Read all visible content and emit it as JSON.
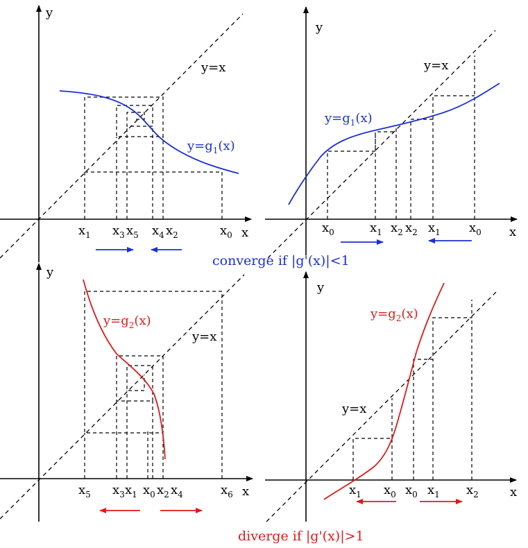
{
  "colors": {
    "axis": "#000000",
    "converge": "#1a2fd6",
    "diverge": "#e11a1a"
  },
  "panels": {
    "tl": {
      "axis_x": "x",
      "axis_y": "y",
      "diag": "y=x",
      "curve": {
        "base": "y=g",
        "sub": "1",
        "tail": "(x)"
      },
      "ticks": [
        {
          "b": "x",
          "s": "1"
        },
        {
          "b": "x",
          "s": "3"
        },
        {
          "b": "x",
          "s": "5"
        },
        {
          "b": "x",
          "s": "4"
        },
        {
          "b": "x",
          "s": "2"
        },
        {
          "b": "x",
          "s": "0"
        }
      ]
    },
    "tr": {
      "axis_x": "x",
      "axis_y": "y",
      "diag": "y=x",
      "curve": {
        "base": "y=g",
        "sub": "1",
        "tail": "(x)"
      },
      "ticks": [
        {
          "b": "x",
          "s": "0"
        },
        {
          "b": "x",
          "s": "1"
        },
        {
          "b": "x",
          "s": "2"
        },
        {
          "b": "x",
          "s": "2"
        },
        {
          "b": "x",
          "s": "1"
        },
        {
          "b": "x",
          "s": "0"
        }
      ]
    },
    "bl": {
      "axis_x": "x",
      "axis_y": "y",
      "diag": "y=x",
      "curve": {
        "base": "y=g",
        "sub": "2",
        "tail": "(x)"
      },
      "ticks": [
        {
          "b": "x",
          "s": "5"
        },
        {
          "b": "x",
          "s": "3"
        },
        {
          "b": "x",
          "s": "1"
        },
        {
          "b": "x",
          "s": "0"
        },
        {
          "b": "x",
          "s": "2"
        },
        {
          "b": "x",
          "s": "4"
        },
        {
          "b": "x",
          "s": "6"
        }
      ]
    },
    "br": {
      "axis_x": "x",
      "axis_y": "y",
      "diag": "y=x",
      "curve": {
        "base": "y=g",
        "sub": "2",
        "tail": "(x)"
      },
      "ticks": [
        {
          "b": "x",
          "s": "1"
        },
        {
          "b": "x",
          "s": "0"
        },
        {
          "b": "x",
          "s": "0"
        },
        {
          "b": "x",
          "s": "1"
        },
        {
          "b": "x",
          "s": "2"
        }
      ]
    }
  },
  "captions": {
    "converge": "converge if |g'(x)|<1",
    "diverge": "diverge if |g'(x)|>1"
  }
}
